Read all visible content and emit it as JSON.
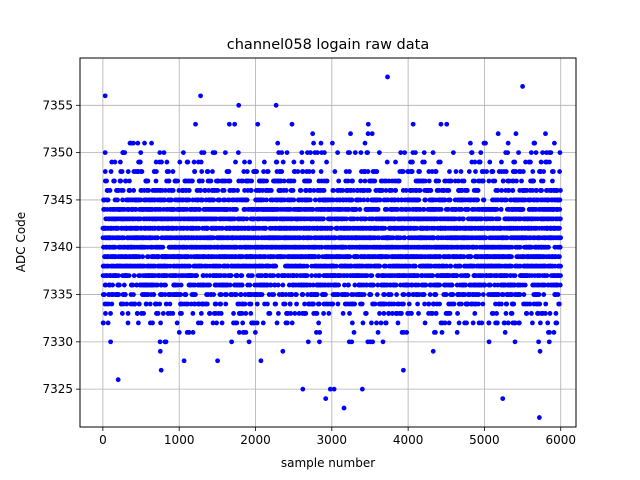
{
  "chart_data": {
    "type": "scatter",
    "title": "channel058 logain raw data",
    "xlabel": "sample number",
    "ylabel": "ADC Code",
    "xlim": [
      -300,
      6200
    ],
    "ylim": [
      7321,
      7360
    ],
    "x_ticks": [
      0,
      1000,
      2000,
      3000,
      4000,
      5000,
      6000
    ],
    "y_ticks": [
      7325,
      7330,
      7335,
      7340,
      7345,
      7350,
      7355
    ],
    "x_tick_labels": [
      "0",
      "1000",
      "2000",
      "3000",
      "4000",
      "5000",
      "6000"
    ],
    "y_tick_labels": [
      "7325",
      "7330",
      "7335",
      "7340",
      "7345",
      "7350",
      "7355"
    ],
    "grid": true,
    "marker_color": "#0000ff",
    "sample_count": 6000,
    "bulk_range": [
      7326,
      7353
    ],
    "series": [
      {
        "description": "integer ADC codes, one per sample; dense band 7334-7347 centred near 7340",
        "outliers": [
          {
            "x": 30,
            "y": 7356
          },
          {
            "x": 1280,
            "y": 7356
          },
          {
            "x": 3730,
            "y": 7358
          },
          {
            "x": 5500,
            "y": 7357
          },
          {
            "x": 2270,
            "y": 7355
          },
          {
            "x": 1780,
            "y": 7355
          },
          {
            "x": 200,
            "y": 7326
          },
          {
            "x": 2620,
            "y": 7325
          },
          {
            "x": 2920,
            "y": 7324
          },
          {
            "x": 2980,
            "y": 7325
          },
          {
            "x": 3030,
            "y": 7325
          },
          {
            "x": 3160,
            "y": 7323
          },
          {
            "x": 3400,
            "y": 7325
          },
          {
            "x": 5240,
            "y": 7324
          },
          {
            "x": 5720,
            "y": 7322
          }
        ]
      }
    ]
  }
}
